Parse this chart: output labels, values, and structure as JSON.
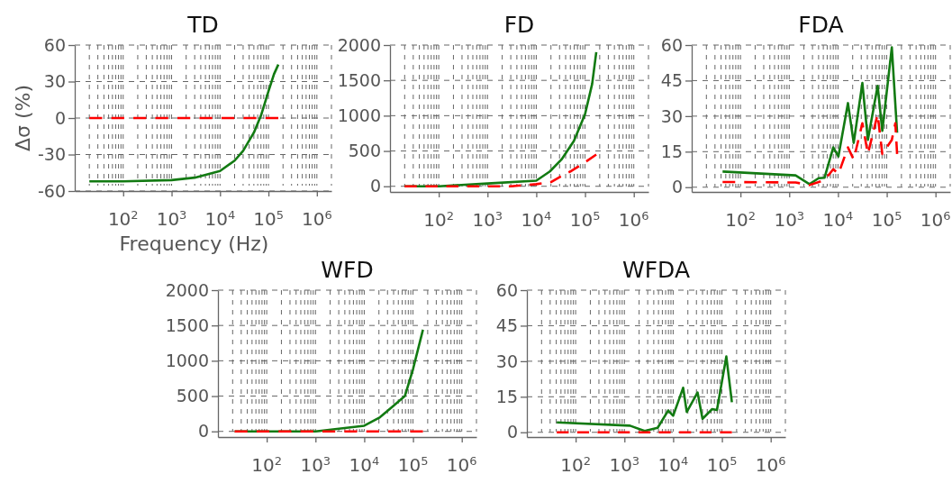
{
  "chart_data": [
    {
      "type": "line",
      "title": "TD",
      "xlabel": "Frequency (Hz)",
      "ylabel": "Δσ (%)",
      "log": "x",
      "grid": true,
      "xlim": [
        10,
        2000000
      ],
      "xticks": [
        {
          "value": 100,
          "label": "10$^{2}$"
        },
        {
          "value": 1000,
          "label": "10$^{3}$"
        },
        {
          "value": 10000,
          "label": "10$^{4}$"
        },
        {
          "value": 100000,
          "label": "10$^{5}$"
        },
        {
          "value": 1000000,
          "label": "10$^{6}$"
        }
      ],
      "ylim": [
        -60,
        60
      ],
      "yticks": [
        -60,
        -30,
        0,
        30,
        60
      ],
      "series": [
        {
          "color": "#ff0000",
          "line_style": "dashed",
          "x": [
            20,
            100,
            1000,
            10000,
            100000,
            160000
          ],
          "values": [
            0,
            0,
            0,
            0,
            0,
            0
          ]
        },
        {
          "color": "#127a12",
          "line_style": "solid",
          "x": [
            20,
            100,
            1000,
            3000,
            10000,
            20000,
            30000,
            50000,
            70000,
            100000,
            130000,
            160000
          ],
          "values": [
            -52,
            -52,
            -51,
            -49,
            -43.5,
            -35,
            -27,
            -12,
            2,
            22,
            36,
            44
          ]
        }
      ]
    },
    {
      "type": "line",
      "title": "FD",
      "log": "x",
      "grid": true,
      "xlim": [
        10,
        2000000
      ],
      "xticks": [
        {
          "value": 100,
          "label": "10$^{2}$"
        },
        {
          "value": 1000,
          "label": "10$^{3}$"
        },
        {
          "value": 10000,
          "label": "10$^{4}$"
        },
        {
          "value": 100000,
          "label": "10$^{5}$"
        },
        {
          "value": 1000000,
          "label": "10$^{6}$"
        }
      ],
      "ylim": [
        -80,
        2000
      ],
      "yticks": [
        0,
        500,
        1000,
        1500,
        2000
      ],
      "series": [
        {
          "color": "#ff0000",
          "line_style": "dashed",
          "x": [
            20,
            100,
            1000,
            3000,
            10000,
            20000,
            30000,
            50000,
            100000,
            170000
          ],
          "values": [
            0,
            0,
            0,
            0,
            30,
            60,
            130,
            210,
            340,
            450
          ]
        },
        {
          "color": "#127a12",
          "line_style": "solid",
          "x": [
            20,
            100,
            1000,
            10000,
            19000,
            33000,
            59000,
            100000,
            140000,
            170000
          ],
          "values": [
            0,
            0,
            40,
            80,
            210,
            380,
            640,
            1020,
            1450,
            1900
          ]
        }
      ]
    },
    {
      "type": "line",
      "title": "FDA",
      "log": "x",
      "grid": true,
      "xlim": [
        10,
        2000000
      ],
      "xticks": [
        {
          "value": 100,
          "label": "10$^{2}$"
        },
        {
          "value": 1000,
          "label": "10$^{3}$"
        },
        {
          "value": 10000,
          "label": "10$^{4}$"
        },
        {
          "value": 100000,
          "label": "10$^{5}$"
        },
        {
          "value": 1000000,
          "label": "10$^{6}$"
        }
      ],
      "ylim": [
        -2,
        60
      ],
      "yticks": [
        0,
        15,
        30,
        45,
        60
      ],
      "series": [
        {
          "color": "#ff0000",
          "line_style": "dashed",
          "x": [
            43,
            1350,
            2600,
            5300,
            8000,
            10200,
            16000,
            21000,
            31600,
            41000,
            65000,
            81000,
            127000,
            150000,
            163000
          ],
          "values": [
            2.2,
            2,
            0.9,
            3,
            7.6,
            5.6,
            16.8,
            11.7,
            27,
            14,
            30.8,
            14,
            20,
            27,
            14
          ]
        },
        {
          "color": "#127a12",
          "line_style": "solid",
          "x": [
            43,
            1350,
            2600,
            4000,
            5300,
            8000,
            10200,
            16000,
            21000,
            31600,
            41000,
            65000,
            81000,
            127000,
            163000
          ],
          "values": [
            6.6,
            5,
            1.3,
            3.8,
            4,
            16.8,
            13,
            35.5,
            18.7,
            44,
            20,
            42.8,
            23.8,
            59,
            23
          ]
        }
      ]
    },
    {
      "type": "line",
      "title": "WFD",
      "log": "x",
      "grid": true,
      "xlim": [
        10,
        2000000
      ],
      "xticks": [
        {
          "value": 100,
          "label": "10$^{2}$"
        },
        {
          "value": 1000,
          "label": "10$^{3}$"
        },
        {
          "value": 10000,
          "label": "10$^{4}$"
        },
        {
          "value": 100000,
          "label": "10$^{5}$"
        },
        {
          "value": 1000000,
          "label": "10$^{6}$"
        }
      ],
      "ylim": [
        -80,
        2000
      ],
      "yticks": [
        0,
        500,
        1000,
        1500,
        2000
      ],
      "series": [
        {
          "color": "#ff0000",
          "line_style": "dashed",
          "x": [
            22,
            100,
            1000,
            10000,
            100000,
            160000
          ],
          "values": [
            0,
            0,
            0,
            0,
            0,
            0
          ]
        },
        {
          "color": "#127a12",
          "line_style": "solid",
          "x": [
            22,
            100,
            1000,
            10000,
            21000,
            38000,
            68000,
            100000,
            160000
          ],
          "values": [
            0,
            0,
            0,
            80,
            200,
            350,
            500,
            880,
            1440
          ]
        }
      ]
    },
    {
      "type": "line",
      "title": "WFDA",
      "log": "x",
      "grid": true,
      "xlim": [
        10,
        2000000
      ],
      "xticks": [
        {
          "value": 100,
          "label": "10$^{2}$"
        },
        {
          "value": 1000,
          "label": "10$^{3}$"
        },
        {
          "value": 10000,
          "label": "10$^{4}$"
        },
        {
          "value": 100000,
          "label": "10$^{5}$"
        },
        {
          "value": 1000000,
          "label": "10$^{6}$"
        }
      ],
      "ylim": [
        -2,
        60
      ],
      "yticks": [
        0,
        15,
        30,
        45,
        60
      ],
      "series": [
        {
          "color": "#ff0000",
          "line_style": "dashed",
          "x": [
            41,
            1000,
            10000,
            100000,
            160000
          ],
          "values": [
            0,
            0,
            0,
            0,
            0
          ]
        },
        {
          "color": "#127a12",
          "line_style": "solid",
          "x": [
            41,
            1300,
            2600,
            4800,
            7900,
            10000,
            16000,
            19000,
            31600,
            40000,
            63000,
            79000,
            123000,
            160000
          ],
          "values": [
            4.2,
            2.8,
            0.6,
            1.9,
            9.2,
            7,
            18.8,
            8.6,
            16.8,
            5.7,
            9.8,
            9.4,
            32,
            12.7
          ]
        }
      ]
    }
  ]
}
